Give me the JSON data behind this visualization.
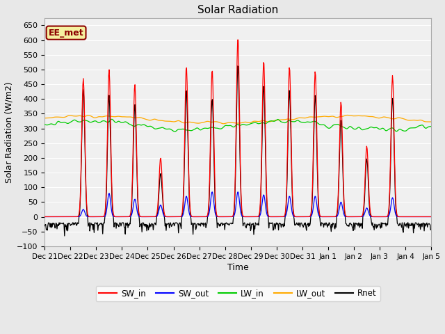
{
  "title": "Solar Radiation",
  "xlabel": "Time",
  "ylabel": "Solar Radiation (W/m2)",
  "ylim": [
    -100,
    675
  ],
  "yticks": [
    -100,
    -50,
    0,
    50,
    100,
    150,
    200,
    250,
    300,
    350,
    400,
    450,
    500,
    550,
    600,
    650
  ],
  "bg_color": "#e8e8e8",
  "plot_bg": "#f0f0f0",
  "annotation_text": "EE_met",
  "annotation_color": "#8B0000",
  "annotation_bg": "#f5f0a0",
  "colors": {
    "SW_in": "#ff0000",
    "SW_out": "#0000ff",
    "LW_in": "#00cc00",
    "LW_out": "#ffaa00",
    "Rnet": "#000000"
  },
  "legend_labels": [
    "SW_in",
    "SW_out",
    "LW_in",
    "LW_out",
    "Rnet"
  ],
  "n_days": 15,
  "seed": 42,
  "day_peaks_SW": [
    0,
    470,
    500,
    450,
    200,
    510,
    500,
    610,
    530,
    510,
    495,
    390,
    240,
    480,
    0
  ],
  "day_peaks_SW_out": [
    0,
    25,
    80,
    60,
    40,
    70,
    85,
    85,
    75,
    70,
    70,
    50,
    30,
    65,
    0
  ],
  "tick_labels": [
    "Dec 21",
    "Dec 22",
    "Dec 23",
    "Dec 24",
    "Dec 25",
    "Dec 26",
    "Dec 27",
    "Dec 28",
    "Dec 29",
    "Dec 30",
    "Dec 31",
    "Jan 1",
    "Jan 2",
    "Jan 3",
    "Jan 4",
    "Jan 5"
  ]
}
